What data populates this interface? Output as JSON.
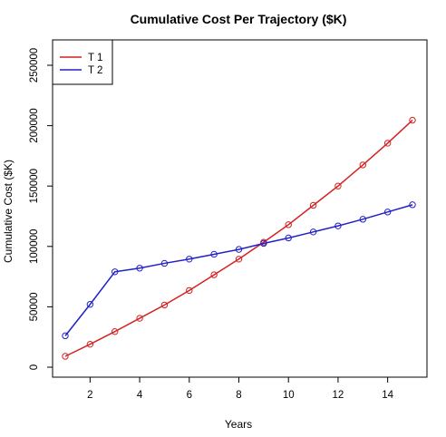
{
  "chart_data": {
    "type": "line",
    "title": "Cumulative Cost Per Trajectory ($K)",
    "xlabel": "Years",
    "ylabel": "Cumulative Cost ($K)",
    "xlim": [
      1,
      15
    ],
    "ylim": [
      0,
      250000
    ],
    "x_ticks": [
      2,
      4,
      6,
      8,
      10,
      12,
      14
    ],
    "y_ticks": [
      0,
      50000,
      100000,
      150000,
      200000,
      250000
    ],
    "legend_position": "top-left",
    "x": [
      1,
      2,
      3,
      4,
      5,
      6,
      7,
      8,
      9,
      10,
      11,
      12,
      13,
      14,
      15
    ],
    "series": [
      {
        "name": "T 1",
        "color": "#d42020",
        "marker": "open-circle",
        "values": [
          9000,
          19000,
          29500,
          40500,
          51500,
          63500,
          76500,
          89500,
          103500,
          118000,
          134000,
          150000,
          167500,
          185500,
          204500
        ]
      },
      {
        "name": "T 2",
        "color": "#2020c8",
        "marker": "open-circle",
        "values": [
          26000,
          52000,
          79000,
          82000,
          86000,
          89500,
          93500,
          97500,
          102500,
          107000,
          112000,
          117000,
          122500,
          128500,
          134500
        ]
      }
    ]
  }
}
